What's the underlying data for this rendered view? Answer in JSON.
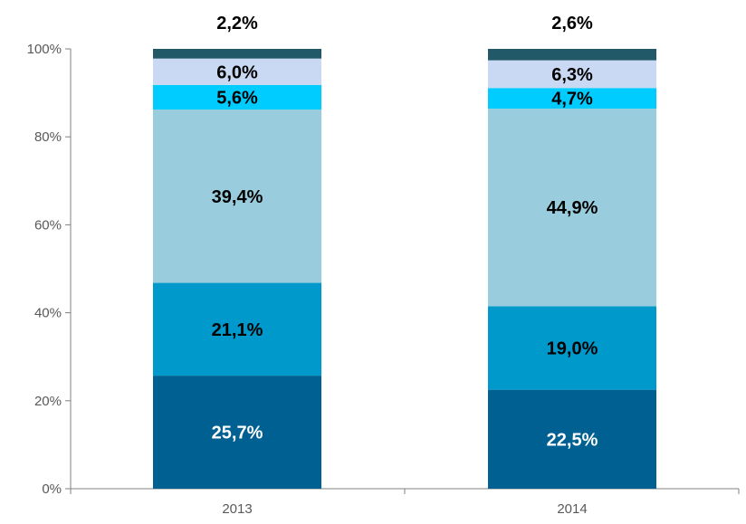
{
  "chart_data": {
    "type": "bar",
    "stacked": true,
    "categories": [
      "2013",
      "2014"
    ],
    "ylim": [
      0,
      100
    ],
    "yticks": [
      "0%",
      "20%",
      "40%",
      "60%",
      "80%",
      "100%"
    ],
    "grid": false,
    "legend": "none",
    "series": [
      {
        "color": "#006091",
        "label_color": "#ffffff",
        "values": [
          25.7,
          22.5
        ],
        "labels": [
          "25,7%",
          "22,5%"
        ]
      },
      {
        "color": "#0099cc",
        "label_color": "#000000",
        "values": [
          21.1,
          19.0
        ],
        "labels": [
          "21,1%",
          "19,0%"
        ]
      },
      {
        "color": "#99cddd",
        "label_color": "#000000",
        "values": [
          39.4,
          44.9
        ],
        "labels": [
          "39,4%",
          "44,9%"
        ]
      },
      {
        "color": "#00ccff",
        "label_color": "#000000",
        "values": [
          5.6,
          4.7
        ],
        "labels": [
          "5,6%",
          "4,7%"
        ]
      },
      {
        "color": "#c9d9f3",
        "label_color": "#000000",
        "values": [
          6.0,
          6.3
        ],
        "labels": [
          "6,0%",
          "6,3%"
        ]
      },
      {
        "color": "#215968",
        "label_color": "#000000",
        "values": [
          2.2,
          2.6
        ],
        "labels": [
          "2,2%",
          "2,6%"
        ],
        "label_above": true
      }
    ]
  }
}
